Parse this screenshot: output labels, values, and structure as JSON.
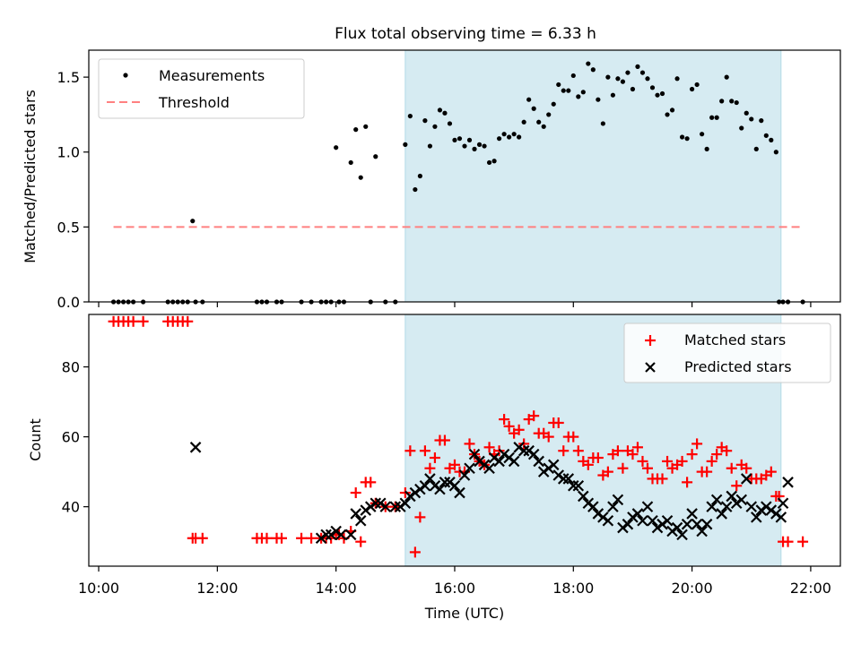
{
  "chart_data": [
    {
      "type": "scatter",
      "title": "Flux total observing time = 6.33 h",
      "xlabel": "",
      "ylabel": "Matched/Predicted stars",
      "xlim": [
        "09:50",
        "22:30"
      ],
      "ylim": [
        0,
        1.68
      ],
      "yticks": [
        0.0,
        0.5,
        1.0,
        1.5
      ],
      "ytick_labels": [
        "0.0",
        "0.5",
        "1.0",
        "1.5"
      ],
      "shaded_span": {
        "start": "15:10",
        "end": "21:30",
        "color": "#add8e6"
      },
      "legend": {
        "position": "top-left",
        "entries": [
          "Measurements",
          "Threshold"
        ]
      },
      "series": [
        {
          "name": "Measurements",
          "marker": "dot",
          "color": "#000000",
          "x": [
            "10:15",
            "10:20",
            "10:25",
            "10:30",
            "10:35",
            "10:45",
            "11:10",
            "11:15",
            "11:20",
            "11:25",
            "11:30",
            "11:35",
            "11:38",
            "11:45",
            "12:40",
            "12:45",
            "12:50",
            "13:00",
            "13:05",
            "13:25",
            "13:35",
            "13:45",
            "13:50",
            "13:55",
            "14:00",
            "14:03",
            "14:08",
            "14:15",
            "14:20",
            "14:25",
            "14:30",
            "14:35",
            "14:40",
            "14:50",
            "15:00",
            "15:10",
            "15:15",
            "15:20",
            "15:25",
            "15:30",
            "15:35",
            "15:40",
            "15:45",
            "15:50",
            "15:55",
            "16:00",
            "16:05",
            "16:10",
            "16:15",
            "16:20",
            "16:25",
            "16:30",
            "16:35",
            "16:40",
            "16:45",
            "16:50",
            "16:55",
            "17:00",
            "17:05",
            "17:10",
            "17:15",
            "17:20",
            "17:25",
            "17:30",
            "17:35",
            "17:40",
            "17:45",
            "17:50",
            "17:55",
            "18:00",
            "18:05",
            "18:10",
            "18:15",
            "18:20",
            "18:25",
            "18:30",
            "18:35",
            "18:40",
            "18:45",
            "18:50",
            "18:55",
            "19:00",
            "19:05",
            "19:10",
            "19:15",
            "19:20",
            "19:25",
            "19:30",
            "19:35",
            "19:40",
            "19:45",
            "19:50",
            "19:55",
            "20:00",
            "20:05",
            "20:10",
            "20:15",
            "20:20",
            "20:25",
            "20:30",
            "20:35",
            "20:40",
            "20:45",
            "20:50",
            "20:55",
            "21:00",
            "21:05",
            "21:10",
            "21:15",
            "21:20",
            "21:25",
            "21:28",
            "21:32",
            "21:37",
            "21:52"
          ],
          "y": [
            0,
            0,
            0,
            0,
            0,
            0,
            0,
            0,
            0,
            0,
            0,
            0.54,
            0,
            0,
            0,
            0,
            0,
            0,
            0,
            0,
            0,
            0,
            0,
            0,
            1.03,
            0,
            0,
            0.93,
            1.15,
            0.83,
            1.17,
            0,
            0.97,
            0,
            0,
            1.05,
            1.24,
            0.75,
            0.84,
            1.21,
            1.04,
            1.17,
            1.28,
            1.26,
            1.19,
            1.08,
            1.09,
            1.04,
            1.08,
            1.02,
            1.05,
            1.04,
            0.93,
            0.94,
            1.09,
            1.12,
            1.1,
            1.12,
            1.1,
            1.2,
            1.35,
            1.29,
            1.2,
            1.17,
            1.25,
            1.32,
            1.45,
            1.41,
            1.41,
            1.51,
            1.37,
            1.4,
            1.59,
            1.55,
            1.35,
            1.19,
            1.5,
            1.38,
            1.49,
            1.47,
            1.53,
            1.42,
            1.57,
            1.53,
            1.49,
            1.43,
            1.38,
            1.39,
            1.25,
            1.28,
            1.49,
            1.1,
            1.09,
            1.42,
            1.45,
            1.12,
            1.02,
            1.23,
            1.23,
            1.34,
            1.5,
            1.34,
            1.33,
            1.16,
            1.26,
            1.22,
            1.02,
            1.21,
            1.11,
            1.08,
            1.0,
            0,
            0,
            0,
            0
          ]
        },
        {
          "name": "Threshold",
          "marker": "dashed-line",
          "color": "#ff8080",
          "x": [
            "10:15",
            "21:52"
          ],
          "y": [
            0.5,
            0.5
          ]
        }
      ]
    },
    {
      "type": "scatter",
      "title": "",
      "xlabel": "Time (UTC)",
      "ylabel": "Count",
      "xlim": [
        "09:50",
        "22:30"
      ],
      "ylim": [
        23,
        95
      ],
      "xticks": [
        "10:00",
        "12:00",
        "14:00",
        "16:00",
        "18:00",
        "20:00",
        "22:00"
      ],
      "yticks": [
        40,
        60,
        80
      ],
      "ytick_labels": [
        "40",
        "60",
        "80"
      ],
      "shaded_span": {
        "start": "15:10",
        "end": "21:30",
        "color": "#add8e6"
      },
      "legend": {
        "position": "top-right",
        "entries": [
          "Matched stars",
          "Predicted stars"
        ]
      },
      "series": [
        {
          "name": "Matched stars",
          "marker": "plus",
          "color": "#ff0000",
          "x": [
            "10:15",
            "10:20",
            "10:25",
            "10:30",
            "10:35",
            "10:45",
            "11:10",
            "11:15",
            "11:20",
            "11:25",
            "11:30",
            "11:35",
            "11:38",
            "11:45",
            "12:40",
            "12:45",
            "12:50",
            "13:00",
            "13:05",
            "13:25",
            "13:35",
            "13:45",
            "13:50",
            "13:55",
            "14:00",
            "14:03",
            "14:08",
            "14:15",
            "14:20",
            "14:25",
            "14:30",
            "14:35",
            "14:40",
            "14:50",
            "15:00",
            "15:10",
            "15:15",
            "15:20",
            "15:25",
            "15:30",
            "15:35",
            "15:40",
            "15:45",
            "15:50",
            "15:55",
            "16:00",
            "16:05",
            "16:10",
            "16:15",
            "16:20",
            "16:25",
            "16:30",
            "16:35",
            "16:40",
            "16:45",
            "16:50",
            "16:55",
            "17:00",
            "17:05",
            "17:10",
            "17:15",
            "17:20",
            "17:25",
            "17:30",
            "17:35",
            "17:40",
            "17:45",
            "17:50",
            "17:55",
            "18:00",
            "18:05",
            "18:10",
            "18:15",
            "18:20",
            "18:25",
            "18:30",
            "18:35",
            "18:40",
            "18:45",
            "18:50",
            "18:55",
            "19:00",
            "19:05",
            "19:10",
            "19:15",
            "19:20",
            "19:25",
            "19:30",
            "19:35",
            "19:40",
            "19:45",
            "19:50",
            "19:55",
            "20:00",
            "20:05",
            "20:10",
            "20:15",
            "20:20",
            "20:25",
            "20:30",
            "20:35",
            "20:40",
            "20:45",
            "20:50",
            "20:55",
            "21:00",
            "21:05",
            "21:10",
            "21:15",
            "21:20",
            "21:25",
            "21:28",
            "21:32",
            "21:37",
            "21:52"
          ],
          "y": [
            93,
            93,
            93,
            93,
            93,
            93,
            93,
            93,
            93,
            93,
            93,
            31,
            31,
            31,
            31,
            31,
            31,
            31,
            31,
            31,
            31,
            31,
            31,
            31,
            32,
            32,
            31,
            33,
            44,
            30,
            47,
            47,
            41,
            40,
            40,
            44,
            56,
            27,
            37,
            56,
            51,
            54,
            59,
            59,
            51,
            52,
            50,
            50,
            58,
            55,
            53,
            52,
            57,
            55,
            56,
            65,
            63,
            61,
            62,
            58,
            65,
            66,
            61,
            61,
            60,
            64,
            64,
            56,
            60,
            60,
            56,
            53,
            52,
            54,
            54,
            49,
            50,
            55,
            56,
            51,
            56,
            55,
            57,
            53,
            51,
            48,
            48,
            48,
            53,
            51,
            52,
            53,
            47,
            55,
            58,
            50,
            50,
            53,
            55,
            57,
            56,
            51,
            46,
            52,
            51,
            48,
            48,
            48,
            49,
            50,
            43,
            43,
            30,
            30,
            30
          ]
        },
        {
          "name": "Predicted stars",
          "marker": "x",
          "color": "#000000",
          "x": [
            "11:38",
            "13:45",
            "13:50",
            "13:55",
            "14:00",
            "14:05",
            "14:15",
            "14:20",
            "14:25",
            "14:30",
            "14:35",
            "14:40",
            "14:45",
            "14:50",
            "15:00",
            "15:05",
            "15:10",
            "15:15",
            "15:20",
            "15:25",
            "15:30",
            "15:35",
            "15:40",
            "15:45",
            "15:50",
            "15:55",
            "16:00",
            "16:05",
            "16:10",
            "16:15",
            "16:20",
            "16:25",
            "16:30",
            "16:35",
            "16:40",
            "16:45",
            "16:50",
            "16:55",
            "17:00",
            "17:05",
            "17:10",
            "17:15",
            "17:20",
            "17:25",
            "17:30",
            "17:35",
            "17:40",
            "17:45",
            "17:50",
            "17:55",
            "18:00",
            "18:05",
            "18:10",
            "18:15",
            "18:20",
            "18:25",
            "18:30",
            "18:35",
            "18:40",
            "18:45",
            "18:50",
            "18:55",
            "19:00",
            "19:05",
            "19:10",
            "19:15",
            "19:20",
            "19:25",
            "19:30",
            "19:35",
            "19:40",
            "19:45",
            "19:50",
            "19:55",
            "20:00",
            "20:05",
            "20:10",
            "20:15",
            "20:20",
            "20:25",
            "20:30",
            "20:35",
            "20:40",
            "20:45",
            "20:50",
            "20:55",
            "21:00",
            "21:05",
            "21:10",
            "21:15",
            "21:20",
            "21:25",
            "21:30",
            "21:32",
            "21:37"
          ],
          "y": [
            57,
            31,
            32,
            32,
            33,
            32,
            32,
            38,
            36,
            39,
            40,
            41,
            41,
            40,
            40,
            40,
            41,
            43,
            44,
            45,
            46,
            48,
            46,
            45,
            47,
            47,
            46,
            44,
            49,
            51,
            55,
            53,
            52,
            51,
            54,
            53,
            55,
            54,
            53,
            57,
            56,
            56,
            55,
            53,
            50,
            51,
            52,
            49,
            48,
            48,
            46,
            46,
            43,
            41,
            40,
            38,
            37,
            36,
            40,
            42,
            34,
            35,
            37,
            38,
            36,
            40,
            36,
            34,
            35,
            36,
            33,
            34,
            32,
            35,
            38,
            35,
            33,
            35,
            40,
            42,
            38,
            40,
            43,
            41,
            42,
            48,
            40,
            37,
            39,
            40,
            39,
            38,
            37,
            41,
            47
          ]
        }
      ]
    }
  ]
}
